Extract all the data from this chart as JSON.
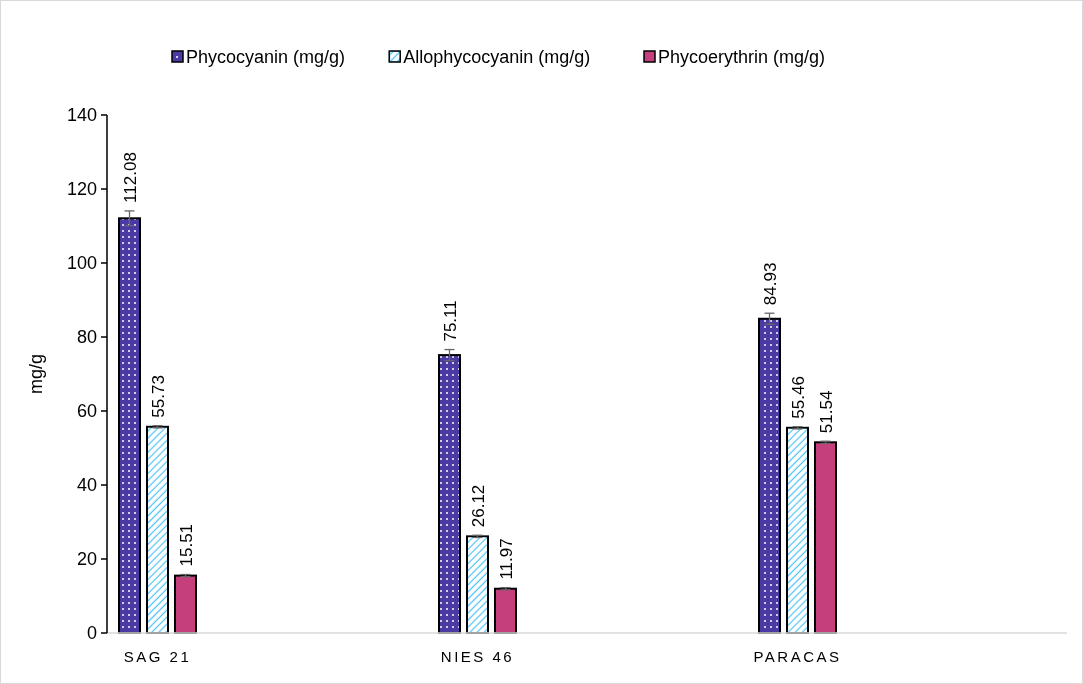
{
  "chart_data": {
    "type": "bar",
    "ylabel": "mg/g",
    "categories": [
      "SAG 21",
      "NIES 46",
      "PARACAS"
    ],
    "series": [
      {
        "name": "Phycocyanin (mg/g)",
        "color": "#4b3aa3",
        "values": [
          112.08,
          75.11,
          84.93
        ],
        "errors": [
          2,
          1.5,
          1.5
        ]
      },
      {
        "name": "Allophycocyanin (mg/g)",
        "color": "#4fc3f7",
        "values": [
          55.73,
          26.12,
          55.46
        ],
        "errors": [
          0.3,
          0.3,
          0.3
        ]
      },
      {
        "name": "Phycoerythrin (mg/g)",
        "color": "#c63f7d",
        "values": [
          15.51,
          11.97,
          51.54
        ],
        "errors": [
          0.3,
          0.3,
          0.3
        ]
      }
    ],
    "ylim": [
      0,
      140
    ],
    "yticks": [
      0,
      20,
      40,
      60,
      80,
      100,
      120,
      140
    ],
    "data_labels": true,
    "legend": "top",
    "grid": false
  }
}
